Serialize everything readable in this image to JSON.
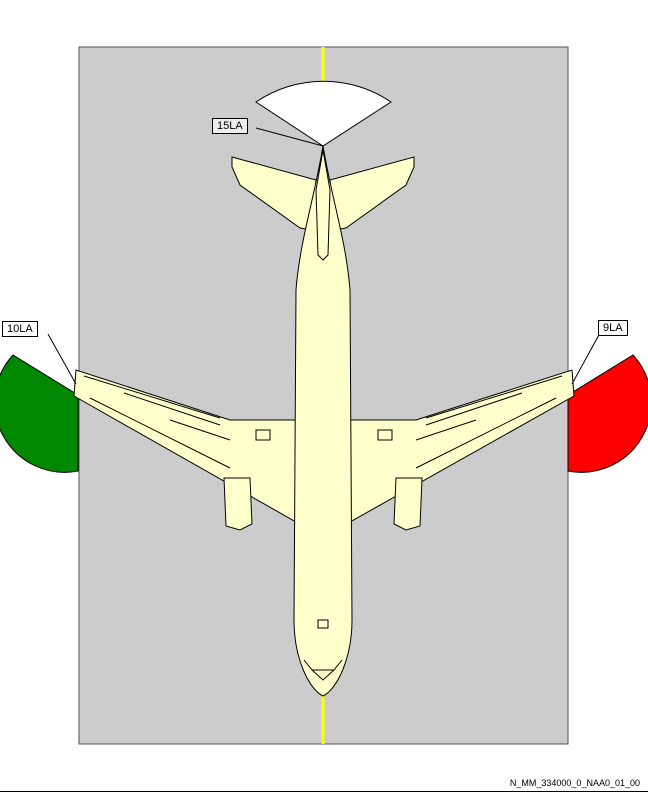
{
  "labels": {
    "tail_light": "15LA",
    "left_wing_light": "10LA",
    "right_wing_light": "9LA"
  },
  "reference": "N_MM_334000_0_NAA0_01_00",
  "colors": {
    "ground": "#cccccc",
    "centerline": "#ffff00",
    "aircraft_fill": "#ffffcc",
    "left_light": "#008800",
    "right_light": "#ff0000",
    "tail_light": "#ffffff"
  }
}
